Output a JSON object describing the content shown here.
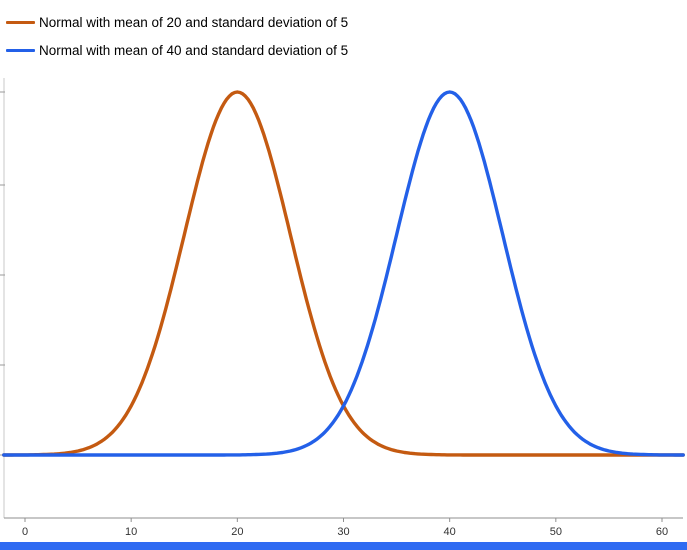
{
  "chart_data": {
    "type": "line",
    "subtype": "normal-density-curves",
    "title": "",
    "xlabel": "",
    "ylabel": "",
    "x_range": [
      0,
      60
    ],
    "x_ticks": [
      0,
      10,
      20,
      30,
      40,
      50,
      60
    ],
    "y_tick_labels_visible": false,
    "grid": false,
    "legend_position": "top-left",
    "peak_density": 0.0798,
    "series": [
      {
        "name": "Normal with mean of 20 and standard deviation of 5",
        "mean": 20,
        "sd": 5,
        "color": "#c45a11"
      },
      {
        "name": "Normal with mean of 40 and standard deviation of 5",
        "mean": 40,
        "sd": 5,
        "color": "#2360e8"
      }
    ]
  },
  "axes": {
    "axis_color": "#8f8f8f",
    "tick_label_color": "#333333"
  },
  "window": {
    "bottom_bar_color": "#2f6bf2"
  }
}
